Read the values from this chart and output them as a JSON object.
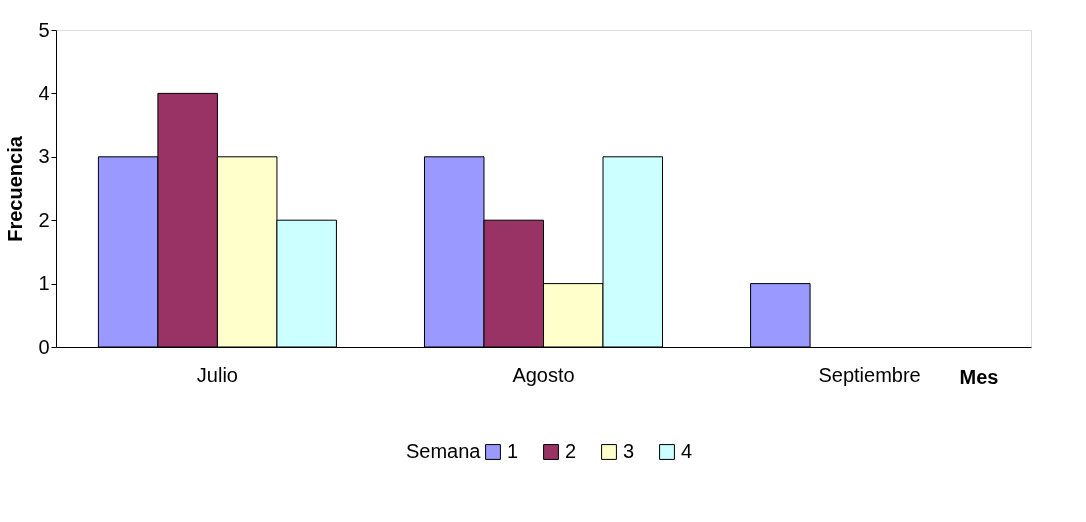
{
  "chart_data": {
    "type": "bar",
    "xlabel": "Mes",
    "ylabel": "Frecuencia",
    "legend_title": "Semana",
    "categories": [
      "Julio",
      "Agosto",
      "Septiembre"
    ],
    "series": [
      {
        "name": "1",
        "color": "#9999ff",
        "values": [
          3,
          3,
          1
        ]
      },
      {
        "name": "2",
        "color": "#993366",
        "values": [
          4,
          2,
          null
        ]
      },
      {
        "name": "3",
        "color": "#ffffcc",
        "values": [
          3,
          1,
          null
        ]
      },
      {
        "name": "4",
        "color": "#ccffff",
        "values": [
          2,
          3,
          null
        ]
      }
    ],
    "ylim": [
      0,
      5
    ],
    "yticks": [
      0,
      1,
      2,
      3,
      4,
      5
    ],
    "grid": false,
    "legend": "bottom"
  }
}
